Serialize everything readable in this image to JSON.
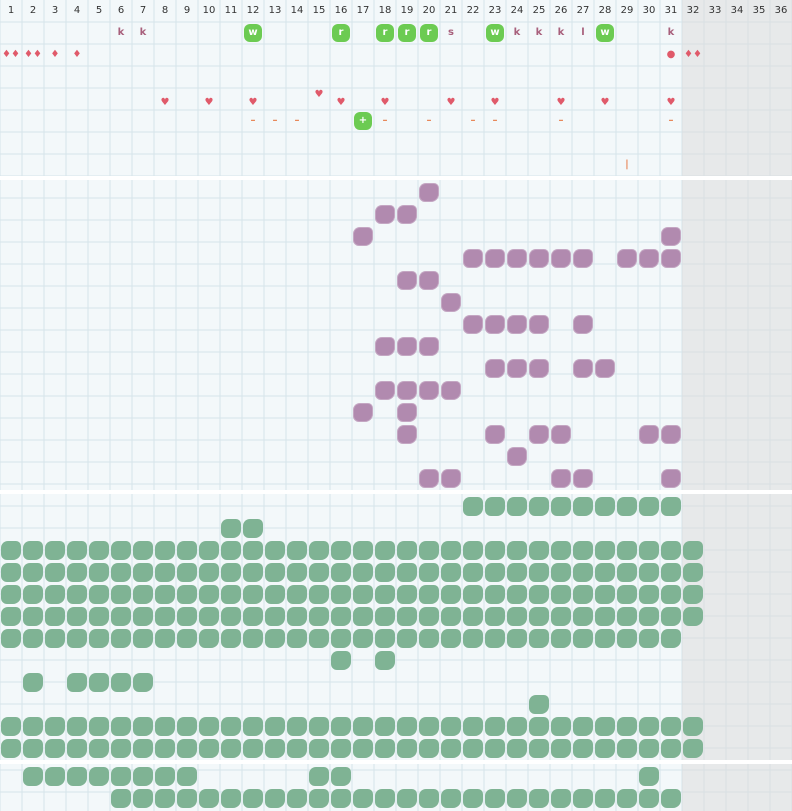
{
  "columns": [
    "1",
    "2",
    "3",
    "4",
    "5",
    "6",
    "7",
    "8",
    "9",
    "10",
    "11",
    "12",
    "13",
    "14",
    "15",
    "16",
    "17",
    "18",
    "19",
    "20",
    "21",
    "22",
    "23",
    "24",
    "25",
    "26",
    "27",
    "28",
    "29",
    "30",
    "31",
    "32",
    "33",
    "34",
    "35",
    "36"
  ],
  "colors": {
    "purple": "#b18aaf",
    "green": "#7fb394",
    "lgreen": "#6ccb52",
    "red": "#e05a6a",
    "orange": "#e8885a",
    "k": "#a8607c"
  },
  "section1": {
    "row1_letters": [
      {
        "col": 6,
        "t": "k",
        "c": "k"
      },
      {
        "col": 7,
        "t": "k",
        "c": "k"
      },
      {
        "col": 12,
        "t": "w",
        "c": "lgreen"
      },
      {
        "col": 16,
        "t": "r",
        "c": "lgreen"
      },
      {
        "col": 18,
        "t": "r",
        "c": "lgreen"
      },
      {
        "col": 19,
        "t": "r",
        "c": "lgreen"
      },
      {
        "col": 20,
        "t": "r",
        "c": "lgreen"
      },
      {
        "col": 21,
        "t": "s",
        "c": "k"
      },
      {
        "col": 23,
        "t": "w",
        "c": "lgreen"
      },
      {
        "col": 24,
        "t": "k",
        "c": "k"
      },
      {
        "col": 25,
        "t": "k",
        "c": "k"
      },
      {
        "col": 26,
        "t": "k",
        "c": "k"
      },
      {
        "col": 27,
        "t": "l",
        "c": "k"
      },
      {
        "col": 28,
        "t": "w",
        "c": "lgreen"
      },
      {
        "col": 31,
        "t": "k",
        "c": "k"
      }
    ],
    "row2_drops": [
      {
        "col": 1,
        "t": "♦♦"
      },
      {
        "col": 2,
        "t": "♦♦"
      },
      {
        "col": 3,
        "t": "♦"
      },
      {
        "col": 4,
        "t": "♦"
      },
      {
        "col": 31,
        "t": "●"
      },
      {
        "col": 32,
        "t": "♦♦"
      }
    ],
    "row4_hearts": [
      {
        "col": 15,
        "t": "♥"
      }
    ],
    "row5_hearts": [
      {
        "col": 8,
        "t": "♥"
      },
      {
        "col": 10,
        "t": "♥"
      },
      {
        "col": 12,
        "t": "♥"
      },
      {
        "col": 16,
        "t": "♥"
      },
      {
        "col": 18,
        "t": "♥"
      },
      {
        "col": 21,
        "t": "♥"
      },
      {
        "col": 23,
        "t": "♥"
      },
      {
        "col": 26,
        "t": "♥"
      },
      {
        "col": 28,
        "t": "♥"
      },
      {
        "col": 31,
        "t": "♥"
      }
    ],
    "row6_dashes": [
      {
        "col": 12,
        "t": "–"
      },
      {
        "col": 13,
        "t": "–"
      },
      {
        "col": 14,
        "t": "–"
      },
      {
        "col": 18,
        "t": "–"
      },
      {
        "col": 20,
        "t": "–"
      },
      {
        "col": 22,
        "t": "–"
      },
      {
        "col": 23,
        "t": "–"
      },
      {
        "col": 26,
        "t": "–"
      },
      {
        "col": 31,
        "t": "–"
      }
    ],
    "row6_plus": [
      {
        "col": 17,
        "t": "+"
      }
    ],
    "row8_marks": [
      {
        "col": 29,
        "t": "|"
      }
    ]
  },
  "purple_rows": [
    [
      20
    ],
    [
      18,
      19
    ],
    [
      17,
      31
    ],
    [
      22,
      23,
      24,
      25,
      26,
      27,
      29,
      30,
      31
    ],
    [
      19,
      20
    ],
    [
      21
    ],
    [
      22,
      23,
      24,
      25,
      27
    ],
    [
      18,
      19,
      20
    ],
    [
      23,
      24,
      25,
      27,
      28
    ],
    [
      18,
      19,
      20,
      21
    ],
    [
      17,
      19
    ],
    [
      19,
      23,
      25,
      26,
      30,
      31
    ],
    [
      24
    ],
    [
      20,
      21,
      26,
      27,
      31
    ]
  ],
  "green_rows": [
    [
      22,
      23,
      24,
      25,
      26,
      27,
      28,
      29,
      30,
      31
    ],
    [
      11,
      12
    ],
    "full",
    "full",
    "full",
    "full",
    "full-31",
    [
      16,
      18
    ],
    [
      2,
      4,
      5,
      6,
      7
    ],
    [
      25
    ],
    "full",
    "full"
  ],
  "bottom_rows": [
    [
      2,
      3,
      4,
      5,
      6,
      7,
      8,
      9,
      15,
      16,
      30
    ],
    [
      6,
      7,
      8,
      9,
      10,
      11,
      12,
      13,
      14,
      15,
      16,
      17,
      18,
      19,
      20,
      21,
      22,
      23,
      24,
      25,
      26,
      27,
      28,
      29,
      30,
      31
    ]
  ]
}
